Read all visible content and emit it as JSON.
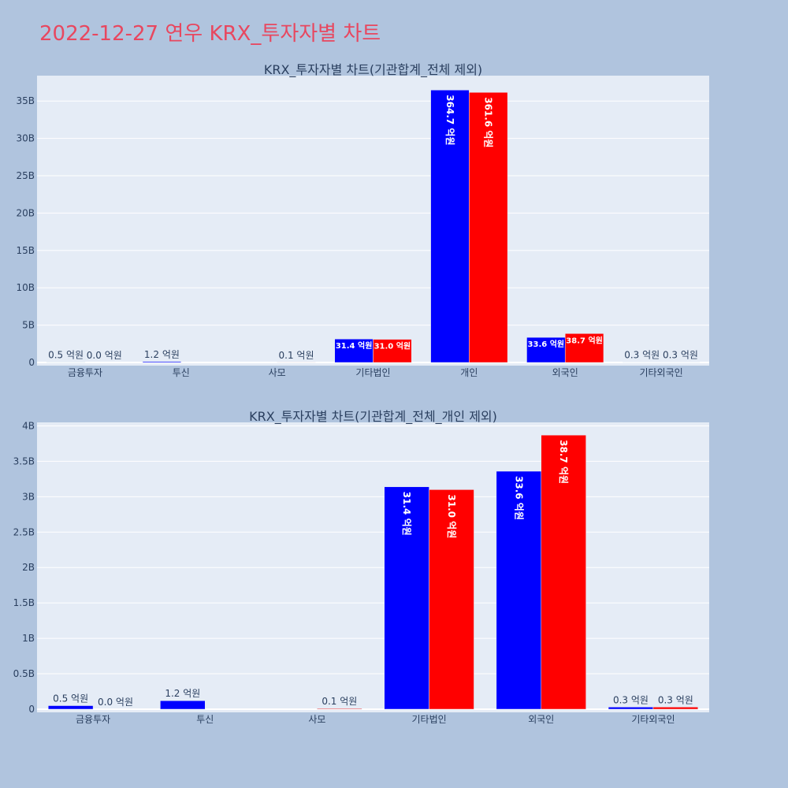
{
  "title": "2022-12-27 연우 KRX_투자자별 차트",
  "colors": {
    "buy": "#0000ff",
    "sell": "#ff0000",
    "plot_bg": "#e5ecf6",
    "page_bg": "#b0c4de"
  },
  "chart_data": [
    {
      "type": "bar",
      "title": "KRX_투자자별 차트(기관합계_전체 제외)",
      "categories": [
        "금융투자",
        "투신",
        "사모",
        "기타법인",
        "개인",
        "외국인",
        "기타외국인"
      ],
      "series": [
        {
          "color": "#0000ff",
          "values": [
            50000000,
            120000000,
            0,
            3140000000,
            36470000000,
            3360000000,
            30000000
          ],
          "labels": [
            "0.5 억원",
            "1.2 억원",
            "",
            "31.4 억원",
            "364.7 억원",
            "33.6 억원",
            "0.3 억원"
          ]
        },
        {
          "color": "#ff0000",
          "values": [
            0,
            0,
            10000000,
            3100000000,
            36160000000,
            3870000000,
            30000000
          ],
          "labels": [
            "0.0 억원",
            "",
            "0.1 억원",
            "31.0 억원",
            "361.6 억원",
            "38.7 억원",
            "0.3 억원"
          ]
        }
      ],
      "yticks": [
        0,
        5000000000,
        10000000000,
        15000000000,
        20000000000,
        25000000000,
        30000000000,
        35000000000
      ],
      "ytick_labels": [
        "0",
        "5B",
        "10B",
        "15B",
        "20B",
        "25B",
        "30B",
        "35B"
      ],
      "ylim": [
        0,
        38400000000
      ],
      "grid": true,
      "barmode": "group"
    },
    {
      "type": "bar",
      "title": "KRX_투자자별 차트(기관합계_전체_개인 제외)",
      "categories": [
        "금융투자",
        "투신",
        "사모",
        "기타법인",
        "외국인",
        "기타외국인"
      ],
      "series": [
        {
          "color": "#0000ff",
          "values": [
            50000000,
            120000000,
            0,
            3140000000,
            3360000000,
            30000000
          ],
          "labels": [
            "0.5 억원",
            "1.2 억원",
            "",
            "31.4 억원",
            "33.6 억원",
            "0.3 억원"
          ]
        },
        {
          "color": "#ff0000",
          "values": [
            0,
            0,
            10000000,
            3100000000,
            3870000000,
            30000000
          ],
          "labels": [
            "0.0 억원",
            "",
            "0.1 억원",
            "31.0 억원",
            "38.7 억원",
            "0.3 억원"
          ]
        }
      ],
      "yticks": [
        0,
        500000000,
        1000000000,
        1500000000,
        2000000000,
        2500000000,
        3000000000,
        3500000000,
        4000000000
      ],
      "ytick_labels": [
        "0",
        "0.5B",
        "1B",
        "1.5B",
        "2B",
        "2.5B",
        "3B",
        "3.5B",
        "4B"
      ],
      "ylim": [
        0,
        4050000000
      ],
      "grid": true,
      "barmode": "group"
    }
  ]
}
